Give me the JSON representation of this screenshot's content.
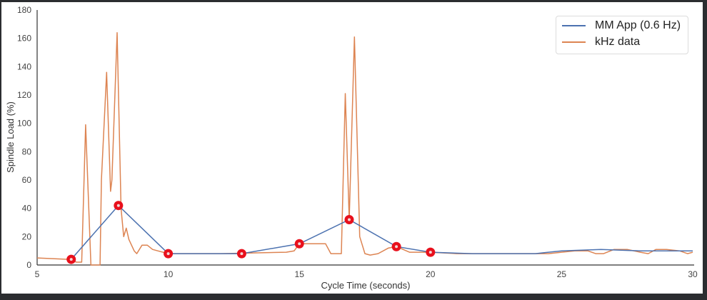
{
  "chart_data": {
    "type": "line",
    "title": "",
    "xlabel": "Cycle Time (seconds)",
    "ylabel": "Spindle Load (%)",
    "xlim": [
      5,
      30
    ],
    "ylim": [
      0,
      180
    ],
    "x_ticks": [
      "5",
      "10",
      "15",
      "20",
      "25",
      "30"
    ],
    "y_ticks": [
      "0",
      "20",
      "40",
      "60",
      "80",
      "100",
      "120",
      "140",
      "160",
      "180"
    ],
    "grid": false,
    "legend_position": "upper right",
    "series": [
      {
        "name": "MM App (0.6 Hz)",
        "color": "#4c72b0",
        "markers": "red circles",
        "x": [
          6.3,
          8.1,
          10.0,
          12.8,
          15.0,
          16.9,
          18.7,
          20.0,
          21.6,
          23.0,
          24.0,
          25.0,
          26.5,
          28.0,
          30.0
        ],
        "values": [
          4,
          42,
          8,
          8,
          15,
          32,
          13,
          9,
          8,
          8,
          8,
          10,
          11,
          10,
          10
        ]
      },
      {
        "name": "kHz data",
        "color": "#dd8452",
        "x": [
          5.0,
          6.2,
          6.5,
          6.7,
          6.85,
          7.05,
          7.1,
          7.4,
          7.45,
          7.65,
          7.8,
          7.85,
          8.05,
          8.2,
          8.3,
          8.4,
          8.5,
          8.7,
          8.8,
          9.0,
          9.2,
          9.4,
          9.6,
          9.8,
          10.0,
          12.0,
          14.5,
          14.8,
          15.0,
          16.0,
          16.2,
          16.6,
          16.75,
          16.9,
          17.1,
          17.3,
          17.5,
          17.7,
          18.0,
          18.4,
          18.7,
          19.2,
          20.0,
          21.0,
          22.0,
          23.0,
          24.0,
          24.5,
          25.0,
          25.5,
          26.0,
          26.3,
          26.6,
          27.0,
          27.5,
          28.0,
          28.3,
          28.6,
          29.0,
          29.5,
          29.8,
          30.0
        ],
        "values": [
          5,
          4,
          2,
          2,
          99,
          0,
          0,
          0,
          60,
          136,
          52,
          60,
          164,
          40,
          20,
          26,
          18,
          10,
          8,
          14,
          14,
          11,
          10,
          9,
          8,
          8,
          9,
          10,
          15,
          15,
          8,
          8,
          121,
          32,
          161,
          20,
          8,
          7,
          8,
          12,
          13,
          9,
          9,
          8,
          8,
          8,
          8,
          8,
          9,
          10,
          10,
          8,
          8,
          11,
          11,
          9,
          8,
          11,
          11,
          10,
          8,
          9
        ]
      }
    ]
  },
  "legend": {
    "items": [
      {
        "label": "MM App (0.6 Hz)",
        "color": "#4c72b0"
      },
      {
        "label": "kHz data",
        "color": "#dd8452"
      }
    ]
  },
  "colors": {
    "marker": "#e8101c",
    "axis": "#333333",
    "frame": "#2b2d30"
  }
}
